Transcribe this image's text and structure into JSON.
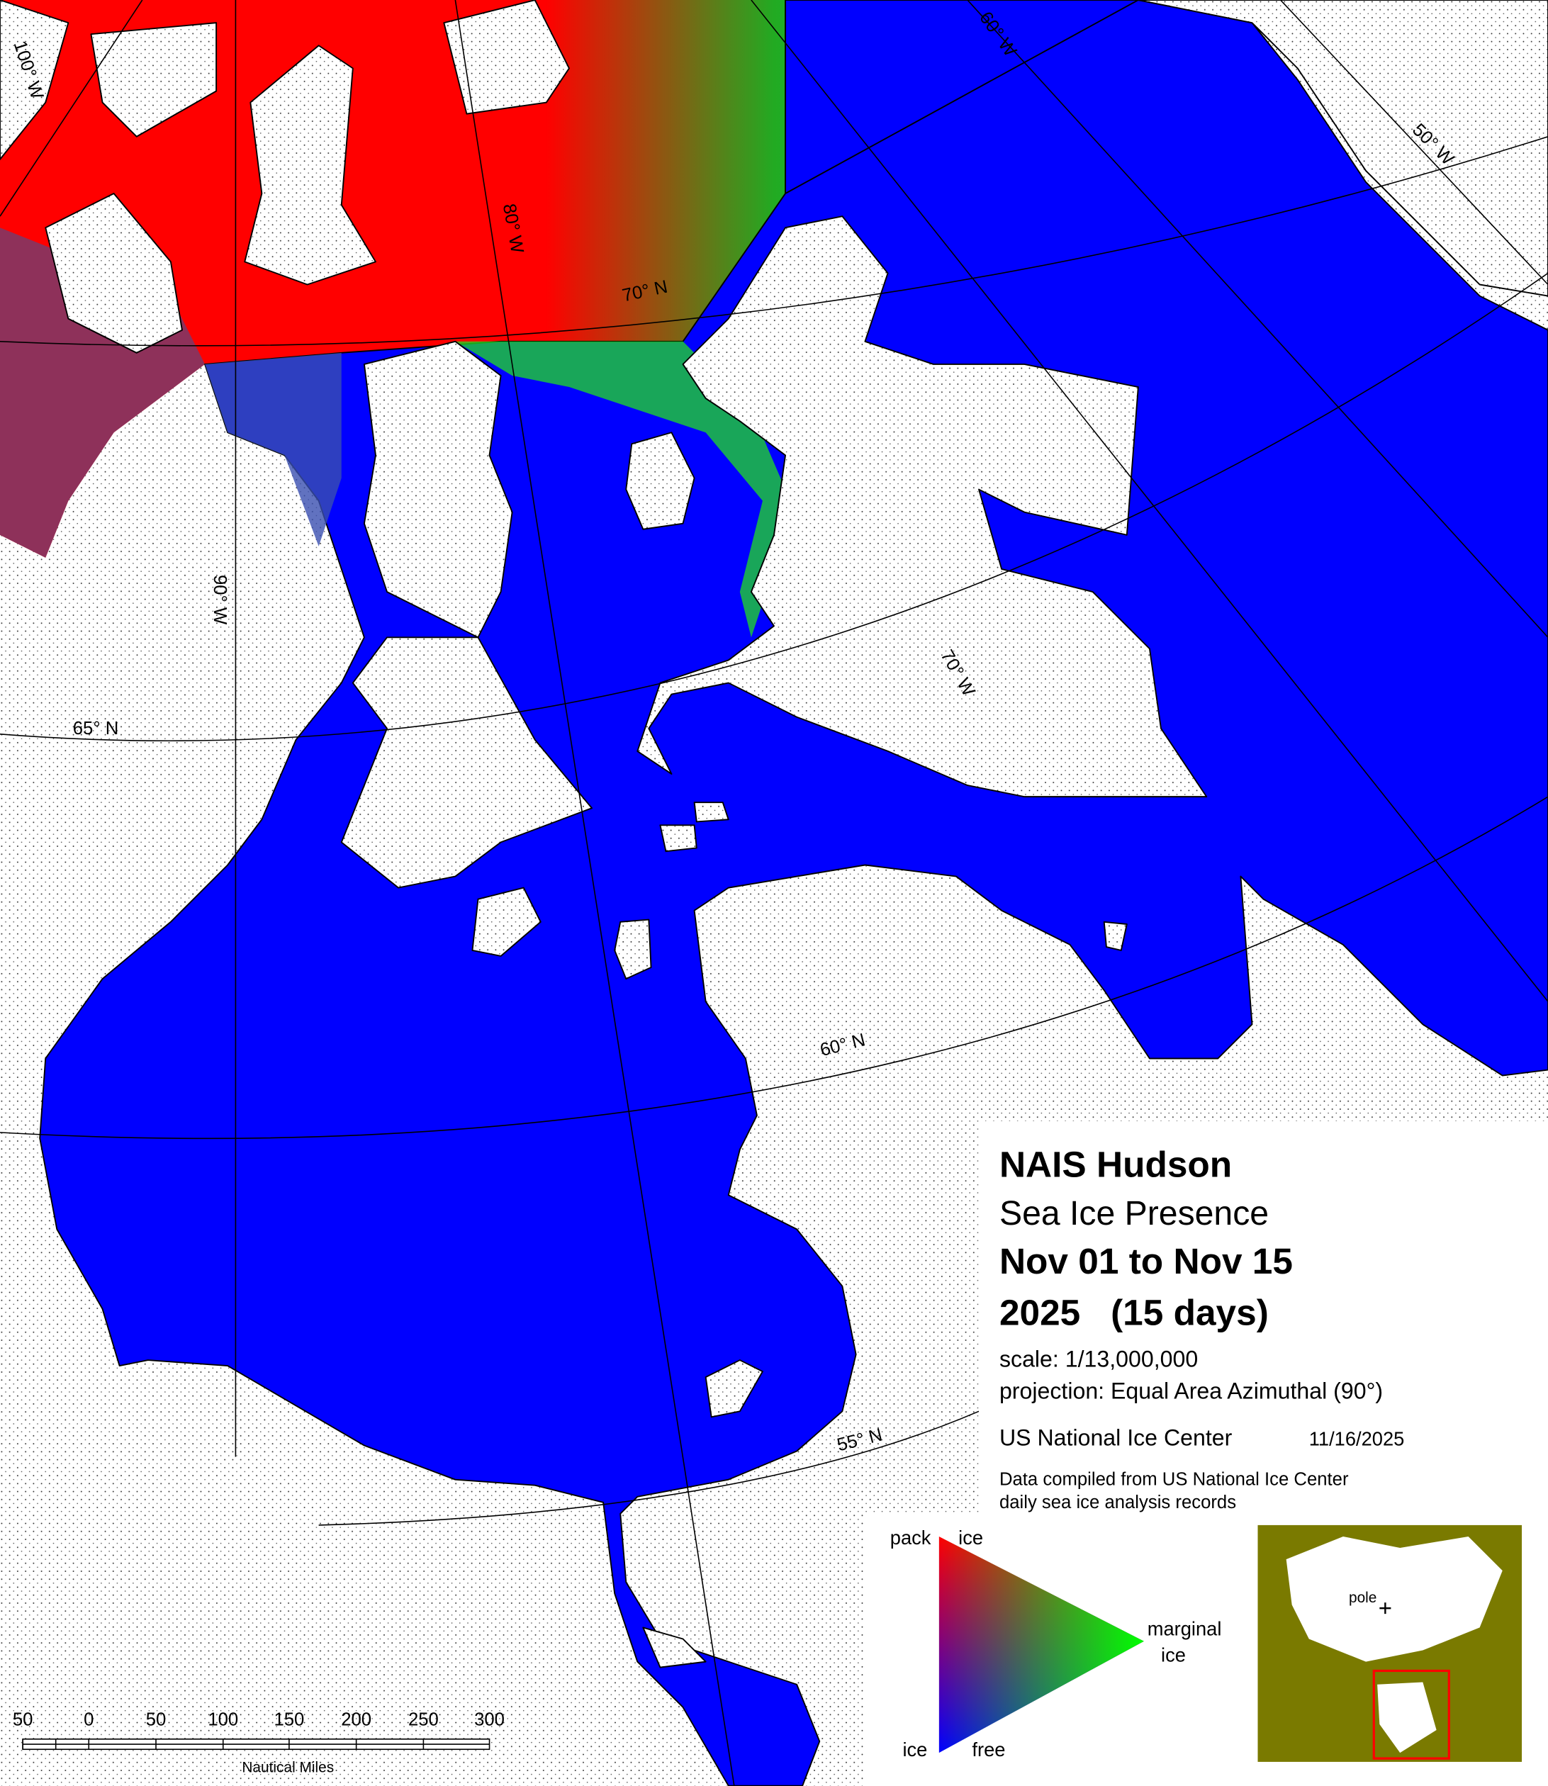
{
  "map": {
    "title": "NAIS Hudson",
    "subtitle": "Sea Ice Presence",
    "period": "Nov 01 to Nov 15",
    "year_days": "2025   (15 days)",
    "scale": "scale: 1/13,000,000",
    "projection": "projection: Equal Area Azimuthal (90°)",
    "agency": "US National Ice Center",
    "date": "11/16/2025",
    "source": [
      "Data compiled from US National Ice Center",
      "daily sea ice analysis records"
    ]
  },
  "legend": {
    "top_left": "pack",
    "top_right": "ice",
    "right_1": "marginal",
    "right_2": "ice",
    "bottom_left": "ice",
    "bottom_right": "free"
  },
  "inset": {
    "label": "pole"
  },
  "graticule": {
    "meridians": [
      "100° W",
      "90° W",
      "80° W",
      "70° W",
      "60° W",
      "50° W"
    ],
    "parallels": [
      "70° N",
      "65° N",
      "60° N",
      "55° N"
    ]
  },
  "scale_bar": {
    "labels": [
      "50",
      "0",
      "50",
      "100",
      "150",
      "200",
      "250",
      "300"
    ],
    "unit": "Nautical Miles"
  }
}
